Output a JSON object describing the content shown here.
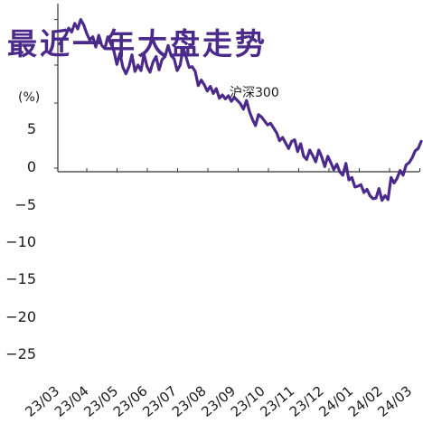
{
  "chart_data": {
    "type": "line",
    "title": "最近一年大盘走势",
    "unit": "(%)",
    "series_label": "沪深300",
    "line_color": "#4b2a8c",
    "x_tick_labels": [
      "23/03",
      "23/04",
      "23/05",
      "23/06",
      "23/07",
      "23/08",
      "23/09",
      "23/10",
      "23/11",
      "23/12",
      "24/01",
      "24/02",
      "24/03"
    ],
    "y_tick_labels": [
      "5",
      "0",
      "−5",
      "−10",
      "−15",
      "−20",
      "−25"
    ],
    "y_tick_values": [
      5,
      0,
      -5,
      -10,
      -15,
      -20,
      -25
    ],
    "ylim": [
      -28,
      16
    ],
    "series": [
      {
        "name": "沪深300",
        "x": [
          0,
          0.1,
          0.2,
          0.3,
          0.4,
          0.5,
          0.6,
          0.7,
          0.8,
          0.9,
          1.0,
          1.1,
          1.2,
          1.3,
          1.4,
          1.5,
          1.6,
          1.7,
          1.8,
          1.9,
          2.0,
          2.1,
          2.2,
          2.3,
          2.4,
          2.5,
          2.6,
          2.7,
          2.8,
          2.9,
          3.0,
          3.1,
          3.2,
          3.3,
          3.4,
          3.5,
          3.6,
          3.7,
          3.8,
          3.9,
          4.0,
          4.1,
          4.2,
          4.3,
          4.4,
          4.5,
          4.6,
          4.7,
          4.8,
          4.9,
          5.0,
          5.1,
          5.2,
          5.3,
          5.4,
          5.5,
          5.6,
          5.7,
          5.8,
          5.9,
          6.0,
          6.1,
          6.2,
          6.3,
          6.4,
          6.5,
          6.6,
          6.7,
          6.8,
          6.9,
          7.0,
          7.1,
          7.2,
          7.3,
          7.4,
          7.5,
          7.6,
          7.7,
          7.8,
          7.9,
          8.0,
          8.1,
          8.2,
          8.3,
          8.4,
          8.5,
          8.6,
          8.7,
          8.8,
          8.9,
          9.0,
          9.1,
          9.2,
          9.3,
          9.4,
          9.5,
          9.6,
          9.7,
          9.8,
          9.9,
          10.0,
          10.1,
          10.2,
          10.3,
          10.4,
          10.5,
          10.6,
          10.7,
          10.8,
          10.9,
          11.0,
          11.1,
          11.2,
          11.3,
          11.4,
          11.5,
          11.6,
          11.7,
          11.8,
          11.9,
          12.0
        ],
        "values": [
          15.8,
          16.4,
          16.9,
          17.8,
          17.3,
          18.4,
          17.7,
          18.9,
          18.2,
          17.1,
          16.3,
          16.7,
          15.4,
          16.9,
          15.6,
          15.2,
          16.7,
          15.8,
          14.9,
          13.2,
          14.6,
          12.8,
          12.0,
          12.9,
          14.4,
          12.3,
          13.1,
          12.4,
          14.5,
          12.9,
          12.2,
          13.5,
          14.2,
          12.5,
          13.8,
          14.2,
          15.6,
          14.3,
          13.9,
          12.4,
          13.1,
          15.3,
          14.1,
          12.8,
          12.9,
          12.3,
          10.5,
          11.2,
          10.6,
          9.8,
          10.4,
          9.5,
          10.1,
          8.9,
          9.3,
          8.8,
          9.2,
          8.5,
          9.0,
          8.6,
          8.2,
          7.5,
          8.6,
          7.2,
          6.2,
          5.4,
          6.8,
          6.5,
          6.0,
          5.5,
          5.7,
          5.1,
          4.5,
          3.5,
          3.9,
          3.2,
          2.5,
          3.4,
          3.6,
          2.1,
          3.1,
          1.5,
          1.1,
          2.3,
          1.6,
          0.8,
          2.3,
          1.4,
          0.2,
          1.5,
          0.7,
          -0.2,
          0.5,
          -0.5,
          -0.9,
          0.6,
          -1.5,
          -1.2,
          -2.4,
          -2.3,
          -2.1,
          -3.1,
          -2.7,
          -3.5,
          -3.9,
          -3.8,
          -2.6,
          -4.1,
          -3.5,
          -4.0,
          -1.2,
          -1.9,
          -1.3,
          -0.3,
          -0.9,
          0.4,
          0.7,
          1.3,
          2.2,
          2.5,
          3.4
        ]
      }
    ]
  }
}
